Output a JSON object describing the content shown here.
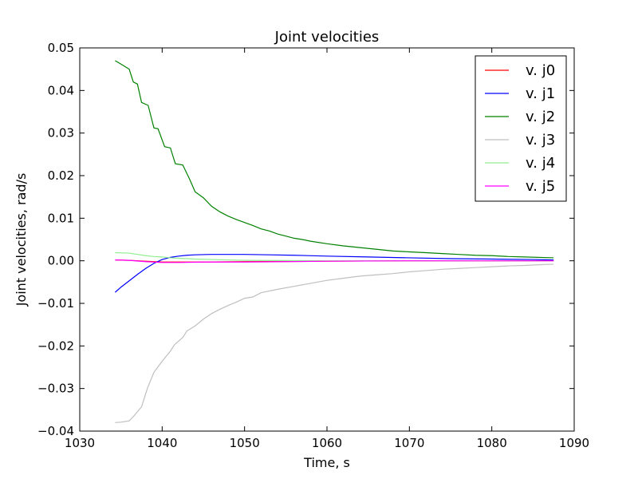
{
  "chart_data": {
    "type": "line",
    "title": "Joint velocities",
    "xlabel": "Time, s",
    "ylabel": "Joint velocities, rad/s",
    "xlim": [
      1030,
      1090
    ],
    "ylim": [
      -0.04,
      0.05
    ],
    "xticks": [
      1030,
      1040,
      1050,
      1060,
      1070,
      1080,
      1090
    ],
    "xtick_labels": [
      "1030",
      "1040",
      "1050",
      "1060",
      "1070",
      "1080",
      "1090"
    ],
    "yticks": [
      -0.04,
      -0.03,
      -0.02,
      -0.01,
      0.0,
      0.01,
      0.02,
      0.03,
      0.04,
      0.05
    ],
    "ytick_labels": [
      "−0.04",
      "−0.03",
      "−0.02",
      "−0.01",
      "0.00",
      "0.01",
      "0.02",
      "0.03",
      "0.04",
      "0.05"
    ],
    "grid": false,
    "legend_position": "top-right",
    "series": [
      {
        "name": "v. j0",
        "color": "#ff0000",
        "x": [
          1034.3,
          1036,
          1038,
          1040,
          1045,
          1050,
          1060,
          1070,
          1080,
          1087.5
        ],
        "y": [
          0.0002,
          0.0001,
          -0.0001,
          -0.0003,
          -0.0003,
          -0.0002,
          -0.0001,
          0.0,
          0.0,
          0.0
        ]
      },
      {
        "name": "v. j1",
        "color": "#0000ff",
        "x": [
          1034.3,
          1035,
          1036,
          1037,
          1038,
          1039,
          1040,
          1041,
          1042,
          1043,
          1044,
          1046,
          1048,
          1050,
          1053,
          1056,
          1060,
          1065,
          1070,
          1075,
          1080,
          1085,
          1087.5
        ],
        "y": [
          -0.0074,
          -0.0062,
          -0.0047,
          -0.0032,
          -0.0018,
          -0.0006,
          0.0003,
          0.0008,
          0.0011,
          0.0013,
          0.0014,
          0.0015,
          0.0015,
          0.0015,
          0.0014,
          0.0013,
          0.0011,
          0.0009,
          0.0007,
          0.0005,
          0.0004,
          0.0003,
          0.0002
        ]
      },
      {
        "name": "v. j2",
        "color": "#008000",
        "x": [
          1034.3,
          1035,
          1036,
          1036.5,
          1037,
          1037.5,
          1038.3,
          1039,
          1039.5,
          1040.3,
          1041,
          1041.6,
          1042.5,
          1043.3,
          1044,
          1045,
          1046,
          1047,
          1048,
          1049,
          1050,
          1051,
          1052,
          1053,
          1054,
          1055,
          1056,
          1057,
          1058,
          1060,
          1062,
          1064,
          1066,
          1068,
          1070,
          1072,
          1074,
          1076,
          1078,
          1080,
          1082,
          1084,
          1087.5
        ],
        "y": [
          0.047,
          0.0462,
          0.045,
          0.042,
          0.0415,
          0.0372,
          0.0365,
          0.0312,
          0.031,
          0.0268,
          0.0265,
          0.0228,
          0.0225,
          0.0193,
          0.0162,
          0.0148,
          0.0128,
          0.0115,
          0.0105,
          0.0097,
          0.009,
          0.0083,
          0.0075,
          0.007,
          0.0063,
          0.0058,
          0.0053,
          0.005,
          0.0046,
          0.004,
          0.0035,
          0.0031,
          0.0027,
          0.0023,
          0.0021,
          0.0019,
          0.0017,
          0.0015,
          0.0013,
          0.0012,
          0.001,
          0.0009,
          0.0007
        ]
      },
      {
        "name": "v. j3",
        "color": "#bfbfbf",
        "x": [
          1034.3,
          1035,
          1036,
          1036.5,
          1037.5,
          1038.2,
          1039,
          1040,
          1041,
          1041.5,
          1042.5,
          1043,
          1044,
          1045,
          1046,
          1047,
          1048,
          1049,
          1050,
          1051,
          1052,
          1054,
          1056,
          1058,
          1060,
          1062,
          1064,
          1066,
          1068,
          1070,
          1072,
          1074,
          1076,
          1078,
          1080,
          1082,
          1084,
          1086,
          1087.5
        ],
        "y": [
          -0.038,
          -0.0379,
          -0.0376,
          -0.0366,
          -0.0343,
          -0.03,
          -0.0262,
          -0.0236,
          -0.0212,
          -0.0197,
          -0.018,
          -0.0165,
          -0.0153,
          -0.0137,
          -0.0124,
          -0.0114,
          -0.0105,
          -0.0097,
          -0.0088,
          -0.0085,
          -0.0075,
          -0.0067,
          -0.006,
          -0.0053,
          -0.0046,
          -0.0041,
          -0.0036,
          -0.0033,
          -0.003,
          -0.0026,
          -0.0023,
          -0.002,
          -0.0018,
          -0.0016,
          -0.0014,
          -0.0012,
          -0.0011,
          -0.0009,
          -0.0008
        ]
      },
      {
        "name": "v. j4",
        "color": "#90ee90",
        "x": [
          1034.3,
          1036,
          1037,
          1038,
          1039,
          1040,
          1041,
          1042,
          1044,
          1046,
          1050,
          1060,
          1070,
          1087.5
        ],
        "y": [
          0.0019,
          0.0018,
          0.0015,
          0.0012,
          0.001,
          0.0009,
          0.0007,
          0.0006,
          0.0004,
          0.0003,
          0.0001,
          0.0,
          0.0,
          0.0
        ]
      },
      {
        "name": "v. j5",
        "color": "#ff00ff",
        "x": [
          1034.3,
          1036,
          1038,
          1040,
          1042,
          1045,
          1050,
          1055,
          1060,
          1070,
          1080,
          1087.5
        ],
        "y": [
          0.0002,
          0.0001,
          -0.0002,
          -0.0004,
          -0.0004,
          -0.0003,
          -0.0003,
          -0.0002,
          -0.0001,
          0.0,
          0.0,
          0.0
        ]
      }
    ]
  }
}
